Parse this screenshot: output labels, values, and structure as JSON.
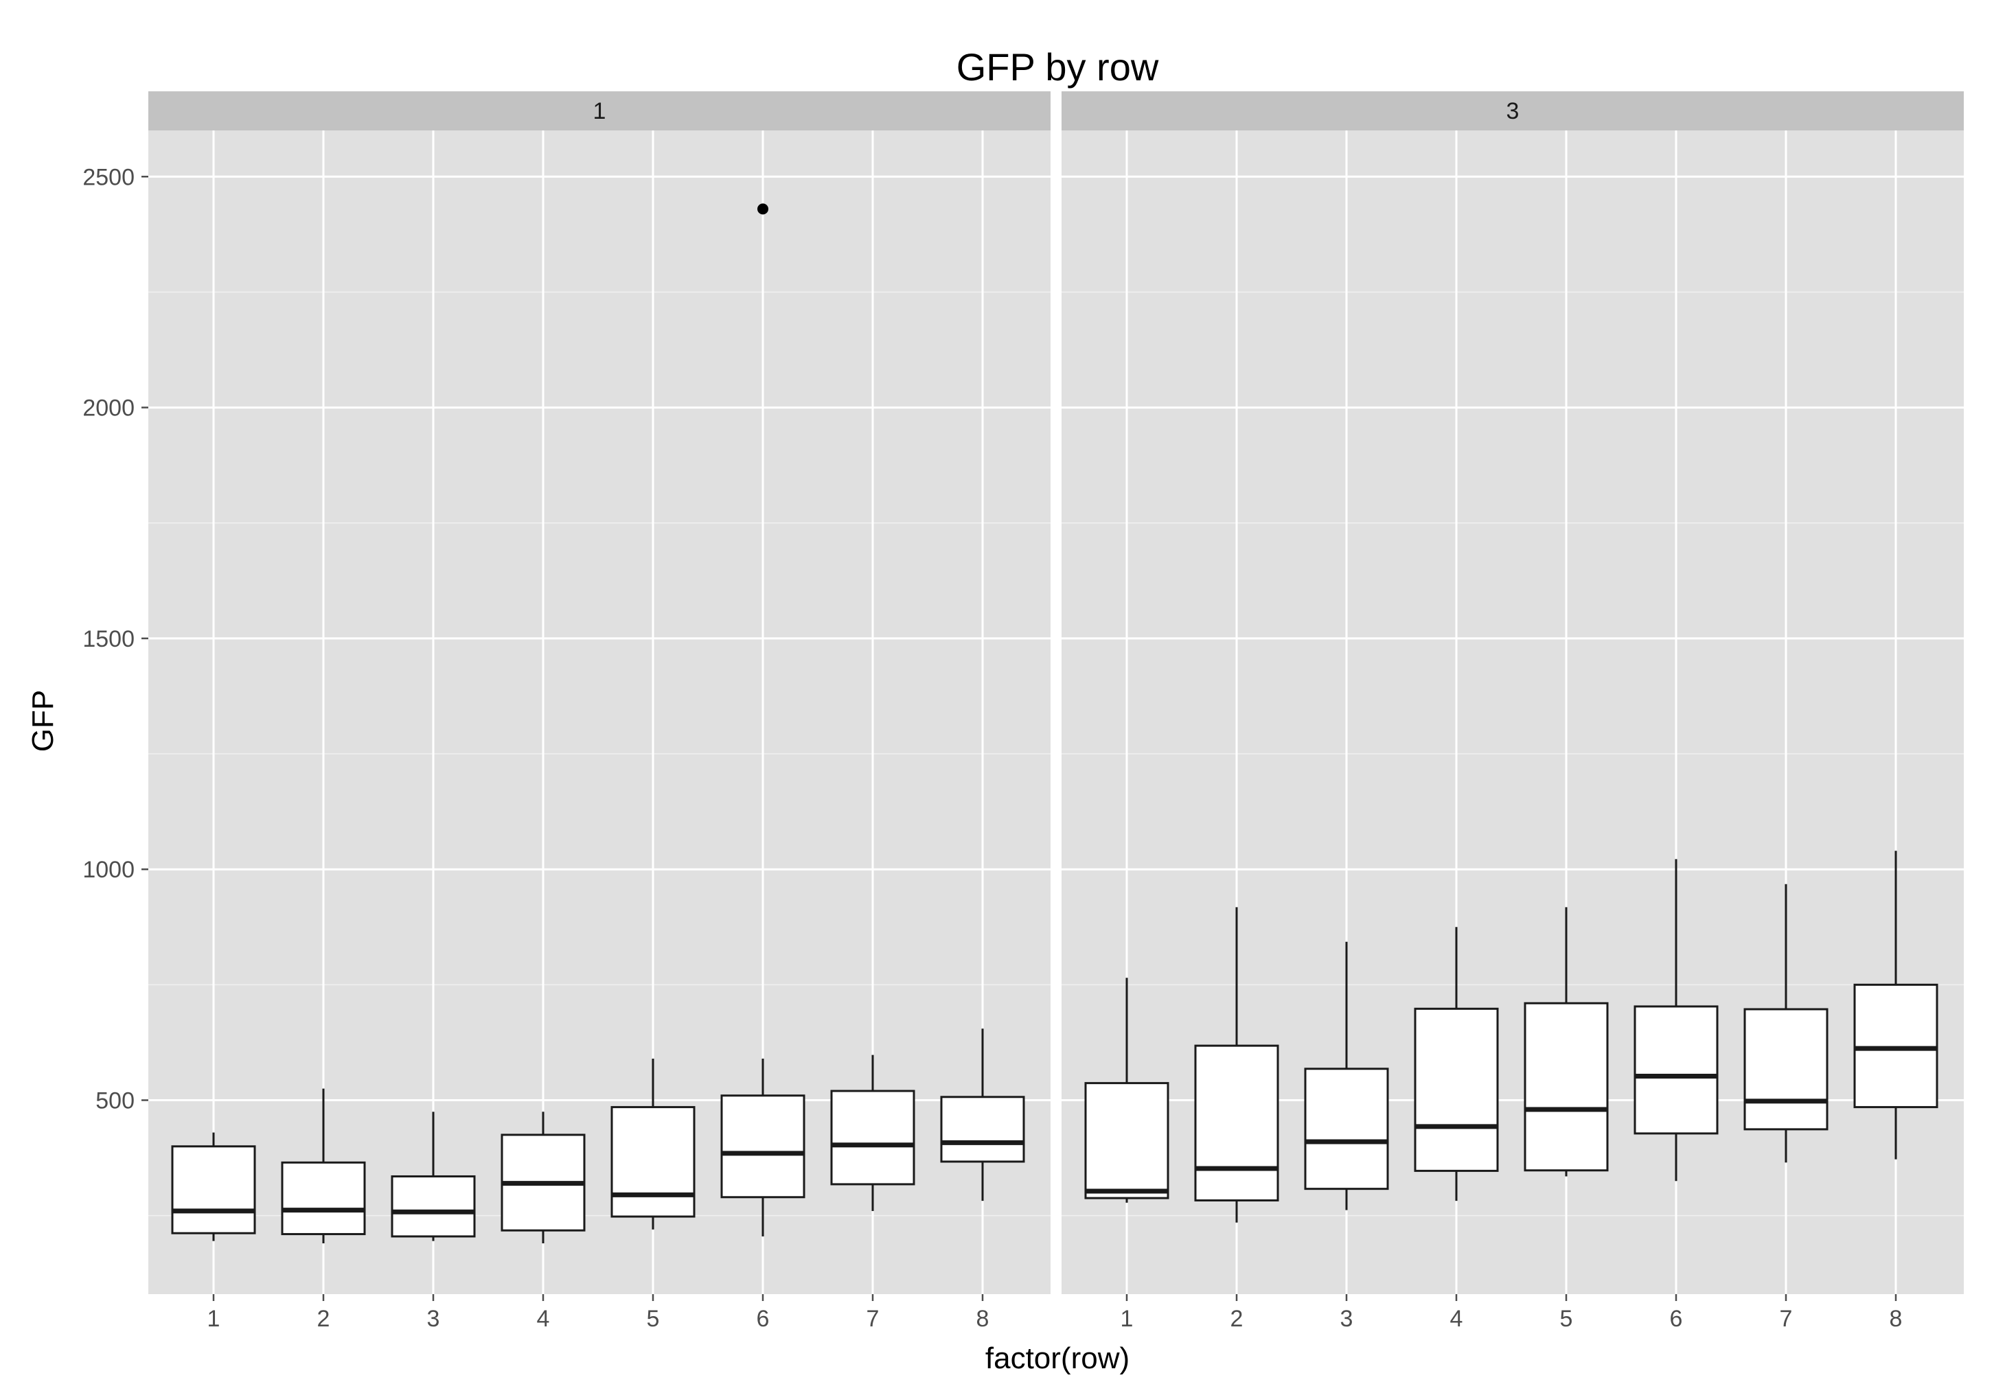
{
  "chart_data": {
    "type": "boxplot",
    "title": "GFP by row",
    "xlabel": "factor(row)",
    "ylabel": "GFP",
    "ylim": [
      80,
      2600
    ],
    "y_ticks": [
      500,
      1000,
      1500,
      2000,
      2500
    ],
    "y_tick_labels": [
      "500",
      "1000",
      "1500",
      "2000",
      "2500"
    ],
    "grid": true,
    "colors": {
      "panel_background": "#e0e0e0",
      "strip_background": "#c2c2c2",
      "gridline": "#ffffff",
      "box_fill": "#ffffff",
      "box_stroke": "#1a1a1a"
    },
    "categories": [
      "1",
      "2",
      "3",
      "4",
      "5",
      "6",
      "7",
      "8"
    ],
    "panels": [
      {
        "label": "1",
        "boxes": [
          {
            "category": "1",
            "lower_whisker": 195,
            "q1": 212,
            "median": 260,
            "q3": 400,
            "upper_whisker": 430,
            "outliers": []
          },
          {
            "category": "2",
            "lower_whisker": 190,
            "q1": 210,
            "median": 262,
            "q3": 365,
            "upper_whisker": 525,
            "outliers": []
          },
          {
            "category": "3",
            "lower_whisker": 195,
            "q1": 205,
            "median": 258,
            "q3": 335,
            "upper_whisker": 475,
            "outliers": []
          },
          {
            "category": "4",
            "lower_whisker": 190,
            "q1": 218,
            "median": 320,
            "q3": 425,
            "upper_whisker": 475,
            "outliers": []
          },
          {
            "category": "5",
            "lower_whisker": 220,
            "q1": 248,
            "median": 295,
            "q3": 485,
            "upper_whisker": 590,
            "outliers": []
          },
          {
            "category": "6",
            "lower_whisker": 205,
            "q1": 290,
            "median": 385,
            "q3": 510,
            "upper_whisker": 590,
            "outliers": [
              2430
            ]
          },
          {
            "category": "7",
            "lower_whisker": 260,
            "q1": 318,
            "median": 403,
            "q3": 520,
            "upper_whisker": 598,
            "outliers": []
          },
          {
            "category": "8",
            "lower_whisker": 282,
            "q1": 367,
            "median": 408,
            "q3": 507,
            "upper_whisker": 655,
            "outliers": []
          }
        ]
      },
      {
        "label": "3",
        "boxes": [
          {
            "category": "1",
            "lower_whisker": 278,
            "q1": 288,
            "median": 303,
            "q3": 537,
            "upper_whisker": 765,
            "outliers": []
          },
          {
            "category": "2",
            "lower_whisker": 235,
            "q1": 283,
            "median": 352,
            "q3": 618,
            "upper_whisker": 918,
            "outliers": []
          },
          {
            "category": "3",
            "lower_whisker": 262,
            "q1": 308,
            "median": 410,
            "q3": 568,
            "upper_whisker": 843,
            "outliers": []
          },
          {
            "category": "4",
            "lower_whisker": 282,
            "q1": 347,
            "median": 443,
            "q3": 698,
            "upper_whisker": 875,
            "outliers": []
          },
          {
            "category": "5",
            "lower_whisker": 335,
            "q1": 348,
            "median": 480,
            "q3": 710,
            "upper_whisker": 918,
            "outliers": []
          },
          {
            "category": "6",
            "lower_whisker": 325,
            "q1": 428,
            "median": 552,
            "q3": 703,
            "upper_whisker": 1022,
            "outliers": []
          },
          {
            "category": "7",
            "lower_whisker": 365,
            "q1": 437,
            "median": 498,
            "q3": 697,
            "upper_whisker": 968,
            "outliers": []
          },
          {
            "category": "8",
            "lower_whisker": 372,
            "q1": 485,
            "median": 612,
            "q3": 750,
            "upper_whisker": 1040,
            "outliers": []
          }
        ]
      }
    ]
  }
}
